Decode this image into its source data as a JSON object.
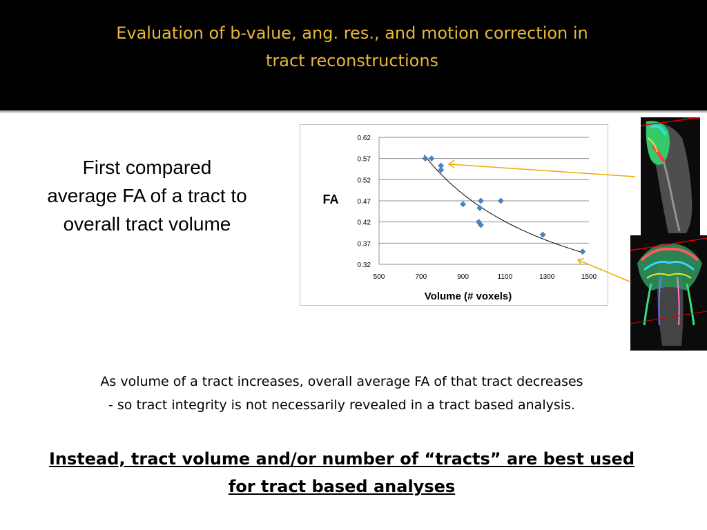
{
  "slide": {
    "title_lines": [
      "Evaluation of b-value, ang. res., and motion correction in",
      "tract reconstructions"
    ],
    "intro_lines": [
      "First compared",
      "average FA of a tract to",
      "overall tract volume"
    ],
    "observation_lines": [
      "As volume of a tract increases, overall average FA of that tract decreases",
      "- so tract integrity is not necessarily revealed in a tract based analysis."
    ],
    "conclusion_lines": [
      "Instead, tract volume and/or number of “tracts” are best used",
      "for tract based analyses"
    ]
  },
  "colors": {
    "header_bg": "#000000",
    "title": "#e8b83a",
    "marker": "#4f81bd",
    "trendline": "#000000",
    "arrow": "#f0a800",
    "plane_line": "#e00000"
  },
  "chart_data": {
    "type": "scatter",
    "title": "",
    "xlabel": "Volume (# voxels)",
    "ylabel": "FA",
    "xlim": [
      500,
      1500
    ],
    "ylim": [
      0.32,
      0.62
    ],
    "xticks": [
      "500",
      "700",
      "900",
      "1100",
      "1300",
      "1500"
    ],
    "yticks": [
      "0.62",
      "0.57",
      "0.52",
      "0.47",
      "0.42",
      "0.37",
      "0.32"
    ],
    "grid": "horizontal",
    "legend": "none",
    "trendline": "decreasing curve",
    "points": [
      {
        "x": 720,
        "y": 0.57
      },
      {
        "x": 750,
        "y": 0.57
      },
      {
        "x": 795,
        "y": 0.553
      },
      {
        "x": 795,
        "y": 0.543
      },
      {
        "x": 900,
        "y": 0.462
      },
      {
        "x": 985,
        "y": 0.47
      },
      {
        "x": 980,
        "y": 0.453
      },
      {
        "x": 975,
        "y": 0.42
      },
      {
        "x": 985,
        "y": 0.413
      },
      {
        "x": 1080,
        "y": 0.47
      },
      {
        "x": 1280,
        "y": 0.39
      },
      {
        "x": 1470,
        "y": 0.35
      }
    ]
  },
  "images": [
    {
      "name": "tractography-top",
      "content": "single tract reconstruction, sagittal view"
    },
    {
      "name": "tractography-bottom",
      "content": "whole-brain tract reconstruction, coronal view"
    }
  ]
}
